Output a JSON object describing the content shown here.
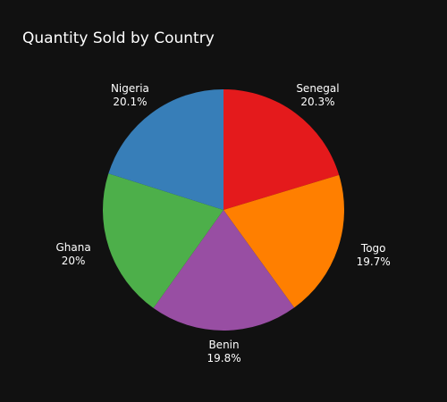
{
  "chart_data": {
    "type": "pie",
    "title": "Quantity Sold by Country",
    "direction": "clockwise",
    "start_angle_deg": 90,
    "slices": [
      {
        "label": "Senegal",
        "percent_text": "20.3%",
        "value": 20.3,
        "color": "#e41a1c"
      },
      {
        "label": "Togo",
        "percent_text": "19.7%",
        "value": 19.7,
        "color": "#ff7f00"
      },
      {
        "label": "Benin",
        "percent_text": "19.8%",
        "value": 19.8,
        "color": "#984ea3"
      },
      {
        "label": "Ghana",
        "percent_text": "20%",
        "value": 20.0,
        "color": "#4daf4a"
      },
      {
        "label": "Nigeria",
        "percent_text": "20.1%",
        "value": 20.1,
        "color": "#377eb8"
      }
    ],
    "legend": "none",
    "background": "#111111"
  }
}
